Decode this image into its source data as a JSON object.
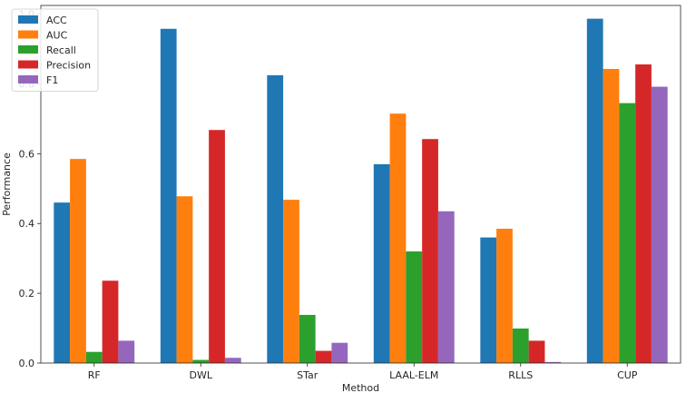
{
  "chart_data": {
    "type": "bar",
    "title": "",
    "xlabel": "Method",
    "ylabel": "Performance",
    "ylim": [
      0,
      1.0
    ],
    "yticks": [
      "0.0",
      "0.2",
      "0.4",
      "0.6",
      "0.8",
      "1.0"
    ],
    "categories": [
      "RF",
      "DWL",
      "STar",
      "LAAL-ELM",
      "RLLS",
      "CUP"
    ],
    "legend_position": "top-left",
    "grid": false,
    "series": [
      {
        "name": "ACC",
        "color": "#1f77b4",
        "values": [
          0.46,
          0.958,
          0.825,
          0.57,
          0.36,
          0.987
        ]
      },
      {
        "name": "AUC",
        "color": "#ff7f0e",
        "values": [
          0.585,
          0.478,
          0.468,
          0.715,
          0.385,
          0.843
        ]
      },
      {
        "name": "Recall",
        "color": "#2ca02c",
        "values": [
          0.032,
          0.009,
          0.138,
          0.32,
          0.099,
          0.745
        ]
      },
      {
        "name": "Precision",
        "color": "#d62728",
        "values": [
          0.236,
          0.668,
          0.035,
          0.642,
          0.064,
          0.856
        ]
      },
      {
        "name": "F1",
        "color": "#9467bd",
        "values": [
          0.064,
          0.015,
          0.058,
          0.435,
          0.003,
          0.792
        ]
      }
    ]
  }
}
